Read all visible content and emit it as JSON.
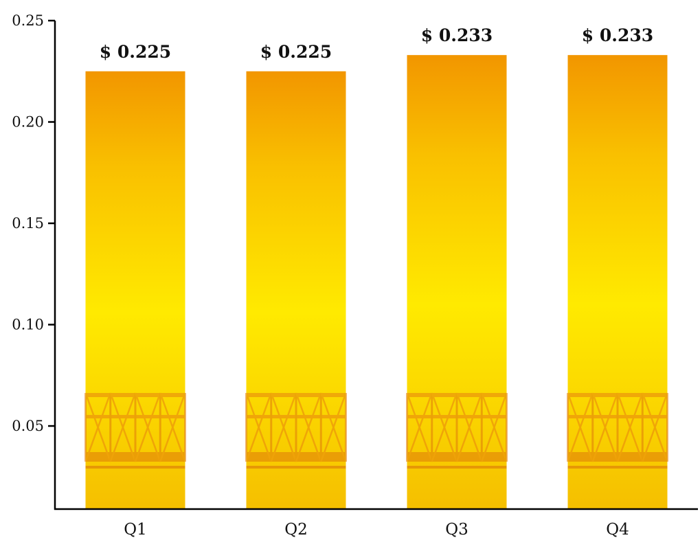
{
  "chart_data": {
    "type": "bar",
    "categories": [
      "Q1",
      "Q2",
      "Q3",
      "Q4"
    ],
    "values": [
      0.225,
      0.225,
      0.233,
      0.233
    ],
    "value_labels": [
      "$ 0.225",
      "$ 0.225",
      "$ 0.233",
      "$ 0.233"
    ],
    "yticks": [
      "0.25",
      "0.20",
      "0.15",
      "0.10",
      "0.05"
    ],
    "ytick_values": [
      0.25,
      0.2,
      0.15,
      0.1,
      0.05
    ],
    "ylim": [
      0.009,
      0.25
    ],
    "title": "",
    "xlabel": "",
    "ylabel": "",
    "grid": false,
    "bar_fill": "gradient with faint bridge-truss photo overlay",
    "colors": {
      "bar_top": "#F29600",
      "bar_mid": "#FFEA00",
      "bar_bottom": "#F5BF00",
      "truss": "#E8820F",
      "axis": "#000000"
    }
  }
}
